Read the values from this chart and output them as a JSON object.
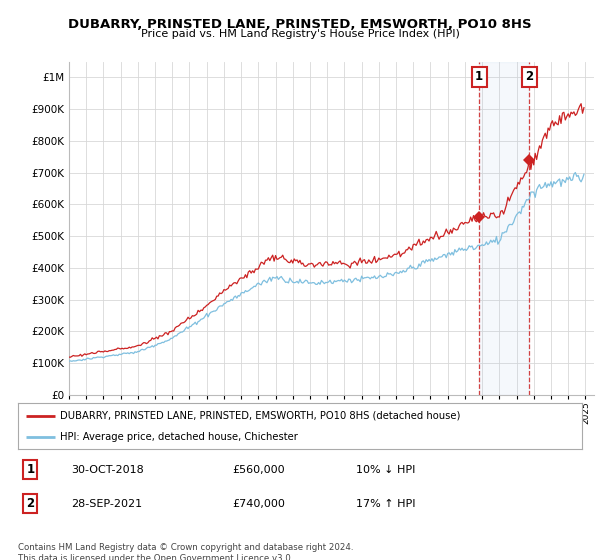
{
  "title": "DUBARRY, PRINSTED LANE, PRINSTED, EMSWORTH, PO10 8HS",
  "subtitle": "Price paid vs. HM Land Registry's House Price Index (HPI)",
  "legend_line1": "DUBARRY, PRINSTED LANE, PRINSTED, EMSWORTH, PO10 8HS (detached house)",
  "legend_line2": "HPI: Average price, detached house, Chichester",
  "annotation1_date": "30-OCT-2018",
  "annotation1_price": "£560,000",
  "annotation1_hpi": "10% ↓ HPI",
  "annotation2_date": "28-SEP-2021",
  "annotation2_price": "£740,000",
  "annotation2_hpi": "17% ↑ HPI",
  "footnote": "Contains HM Land Registry data © Crown copyright and database right 2024.\nThis data is licensed under the Open Government Licence v3.0.",
  "hpi_color": "#7fbfdf",
  "price_color": "#cc2222",
  "ylim_min": 0,
  "ylim_max": 1050000,
  "transaction1_year": 2018.83,
  "transaction1_value": 560000,
  "transaction2_year": 2021.74,
  "transaction2_value": 740000,
  "background_color": "#ffffff",
  "grid_color": "#d8d8d8"
}
